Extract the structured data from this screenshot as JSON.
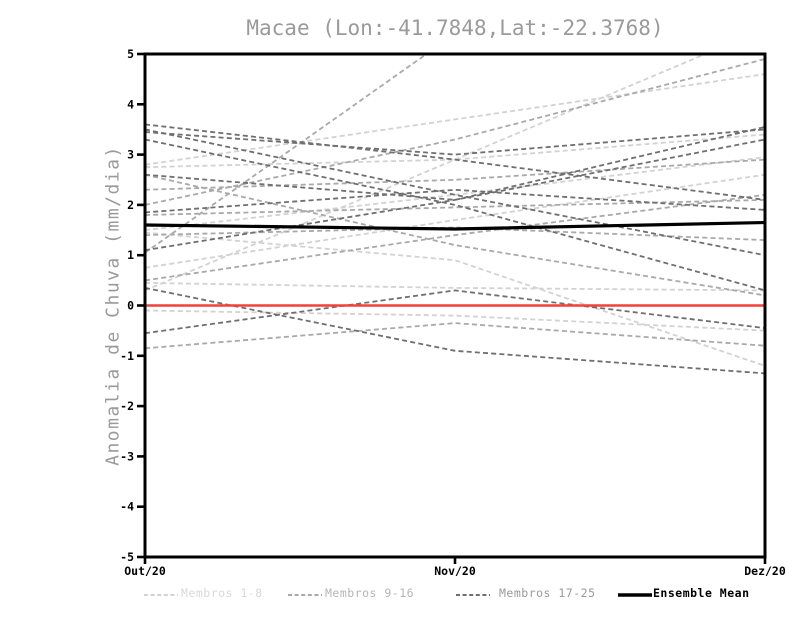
{
  "window": {
    "background": "#ffffff"
  },
  "chart_data": {
    "type": "line",
    "title": "Macae (Lon:-41.7848,Lat:-22.3768)",
    "ylabel": "Anomalia de Chuva (mm/dia)",
    "xlabel": "",
    "x_categories": [
      "Out/20",
      "Nov/20",
      "Dez/20"
    ],
    "ylim": [
      -5,
      5
    ],
    "y_tick_labels": [
      "5",
      "4",
      "3",
      "2",
      "1",
      "0",
      "-1",
      "-2",
      "-3",
      "-4",
      "-5"
    ],
    "grid": false,
    "legend_position": "bottom",
    "frame_color": "#000000",
    "axis_text_color": "#000000",
    "title_color": "#9a9a9a",
    "zero_line": {
      "value": 0,
      "color": "#f4413a"
    },
    "groups": [
      {
        "name": "Membros 1-8",
        "color": "#d2d2d2",
        "label_color": "#d8d8d8",
        "style": "dashed"
      },
      {
        "name": "Membros 9-16",
        "color": "#a9a9a9",
        "label_color": "#b5b5b5",
        "style": "dashed"
      },
      {
        "name": "Membros 17-25",
        "color": "#6f6f6f",
        "label_color": "#9a9a9a",
        "style": "dashed"
      }
    ],
    "members": [
      {
        "group": 0,
        "values": [
          2.8,
          3.7,
          4.6
        ]
      },
      {
        "group": 0,
        "values": [
          2.75,
          2.9,
          3.4
        ]
      },
      {
        "group": 0,
        "values": [
          1.5,
          2.2,
          2.95
        ]
      },
      {
        "group": 0,
        "values": [
          0.75,
          1.7,
          2.6
        ]
      },
      {
        "group": 0,
        "values": [
          0.45,
          0.35,
          0.3
        ]
      },
      {
        "group": 0,
        "values": [
          -0.1,
          -0.2,
          -0.5
        ]
      },
      {
        "group": 0,
        "values": [
          1.45,
          0.9,
          -1.2
        ]
      },
      {
        "group": 0,
        "values": [
          0.3,
          2.9,
          5.5
        ]
      },
      {
        "group": 1,
        "values": [
          1.05,
          5.4,
          5.9
        ]
      },
      {
        "group": 1,
        "values": [
          2.0,
          3.3,
          4.9
        ]
      },
      {
        "group": 1,
        "values": [
          2.3,
          2.5,
          2.9
        ]
      },
      {
        "group": 1,
        "values": [
          1.8,
          1.95,
          2.1
        ]
      },
      {
        "group": 1,
        "values": [
          1.4,
          1.55,
          1.3
        ]
      },
      {
        "group": 1,
        "values": [
          -0.85,
          -0.35,
          -0.8
        ]
      },
      {
        "group": 1,
        "values": [
          2.6,
          1.2,
          0.2
        ]
      },
      {
        "group": 1,
        "values": [
          0.5,
          1.4,
          2.2
        ]
      },
      {
        "group": 2,
        "values": [
          3.6,
          2.9,
          2.1
        ]
      },
      {
        "group": 2,
        "values": [
          3.5,
          2.2,
          1.0
        ]
      },
      {
        "group": 2,
        "values": [
          3.45,
          3.0,
          3.5
        ]
      },
      {
        "group": 2,
        "values": [
          3.3,
          2.0,
          0.3
        ]
      },
      {
        "group": 2,
        "values": [
          2.6,
          2.1,
          3.55
        ]
      },
      {
        "group": 2,
        "values": [
          1.85,
          2.3,
          1.9
        ]
      },
      {
        "group": 2,
        "values": [
          1.1,
          2.1,
          3.3
        ]
      },
      {
        "group": 2,
        "values": [
          -0.55,
          0.3,
          -0.45
        ]
      },
      {
        "group": 2,
        "values": [
          0.35,
          -0.9,
          -1.35
        ]
      }
    ],
    "mean": {
      "name": "Ensemble Mean",
      "color": "#000000",
      "values": [
        1.6,
        1.52,
        1.65
      ]
    }
  }
}
